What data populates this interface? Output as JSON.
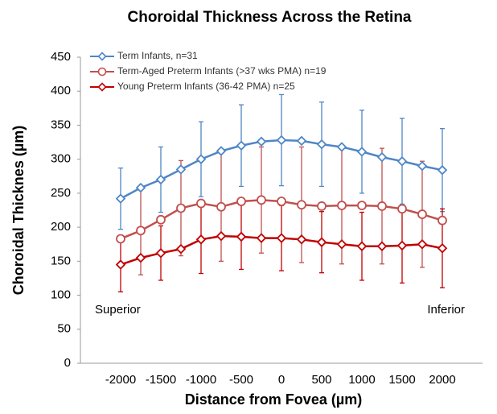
{
  "chart_data": {
    "type": "line",
    "title": "Choroidal Thickness Across the Retina",
    "xlabel": "Distance from Fovea (µm)",
    "ylabel": "Choroidal Thicknes (µm)",
    "annotations": [
      "Superior",
      "Inferior"
    ],
    "x": [
      -2000,
      -1750,
      -1500,
      -1250,
      -1000,
      -750,
      -500,
      -250,
      0,
      250,
      500,
      750,
      1000,
      1250,
      1500,
      1750,
      2000
    ],
    "series": [
      {
        "name": "Term Infants, n=31",
        "color": "#4f86c6",
        "marker": "diamond",
        "values": [
          242,
          258,
          270,
          285,
          300,
          312,
          320,
          326,
          328,
          327,
          322,
          318,
          311,
          303,
          297,
          290,
          284
        ],
        "errors": [
          45,
          null,
          48,
          null,
          55,
          null,
          60,
          null,
          67,
          null,
          62,
          null,
          61,
          null,
          63,
          null,
          61
        ]
      },
      {
        "name": "Term-Aged Preterm Infants (>37 wks PMA) n=19",
        "color": "#c0504d",
        "marker": "circle",
        "values": [
          183,
          195,
          211,
          228,
          235,
          230,
          238,
          240,
          238,
          233,
          231,
          232,
          232,
          231,
          227,
          219,
          210
        ],
        "errors": [
          null,
          65,
          null,
          70,
          null,
          80,
          null,
          78,
          null,
          85,
          null,
          86,
          null,
          85,
          null,
          78,
          null
        ]
      },
      {
        "name": "Young Preterm Infants (36-42 PMA) n=25",
        "color": "#c00000",
        "marker": "diamond",
        "values": [
          145,
          155,
          162,
          168,
          182,
          187,
          186,
          184,
          184,
          182,
          178,
          175,
          172,
          172,
          173,
          175,
          169
        ],
        "errors": [
          40,
          null,
          40,
          null,
          50,
          null,
          48,
          null,
          48,
          null,
          45,
          null,
          50,
          null,
          55,
          null,
          58
        ]
      }
    ],
    "xlim": [
      -2500,
      2500
    ],
    "xticks": [
      -2000,
      -1500,
      -1000,
      -500,
      0,
      500,
      1000,
      1500,
      2000
    ],
    "ylim": [
      0,
      450
    ],
    "yticks": [
      0,
      50,
      100,
      150,
      200,
      250,
      300,
      350,
      400,
      450
    ],
    "grid": false,
    "legend": "upper left"
  }
}
